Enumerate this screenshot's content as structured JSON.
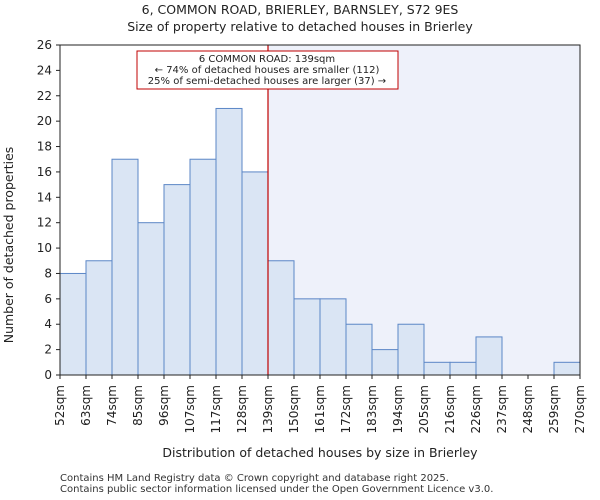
{
  "chart_data": {
    "type": "bar",
    "title": "6, COMMON ROAD, BRIERLEY, BARNSLEY, S72 9ES",
    "subtitle": "Size of property relative to detached houses in Brierley",
    "xlabel": "Distribution of detached houses by size in Brierley",
    "ylabel": "Number of detached properties",
    "ylim": [
      0,
      26
    ],
    "yticks": [
      0,
      2,
      4,
      6,
      8,
      10,
      12,
      14,
      16,
      18,
      20,
      22,
      24,
      26
    ],
    "bin_edges": [
      "52sqm",
      "63sqm",
      "74sqm",
      "85sqm",
      "96sqm",
      "107sqm",
      "117sqm",
      "128sqm",
      "139sqm",
      "150sqm",
      "161sqm",
      "172sqm",
      "183sqm",
      "194sqm",
      "205sqm",
      "216sqm",
      "226sqm",
      "237sqm",
      "248sqm",
      "259sqm",
      "270sqm"
    ],
    "values": [
      8,
      9,
      17,
      12,
      15,
      17,
      21,
      16,
      9,
      6,
      6,
      4,
      2,
      4,
      1,
      1,
      3,
      0,
      0,
      1
    ],
    "property_marker": "139sqm",
    "annotation": {
      "line1": "6 COMMON ROAD: 139sqm",
      "line2": "← 74% of detached houses are smaller (112)",
      "line3": "25% of semi-detached houses are larger (37) →"
    },
    "colors": {
      "bar_fill": "#dae5f4",
      "bar_stroke": "#5b86c6",
      "marker": "#c00000",
      "shade": "#eef1fa"
    }
  },
  "footer": {
    "line1": "Contains HM Land Registry data © Crown copyright and database right 2025.",
    "line2": "Contains public sector information licensed under the Open Government Licence v3.0."
  }
}
